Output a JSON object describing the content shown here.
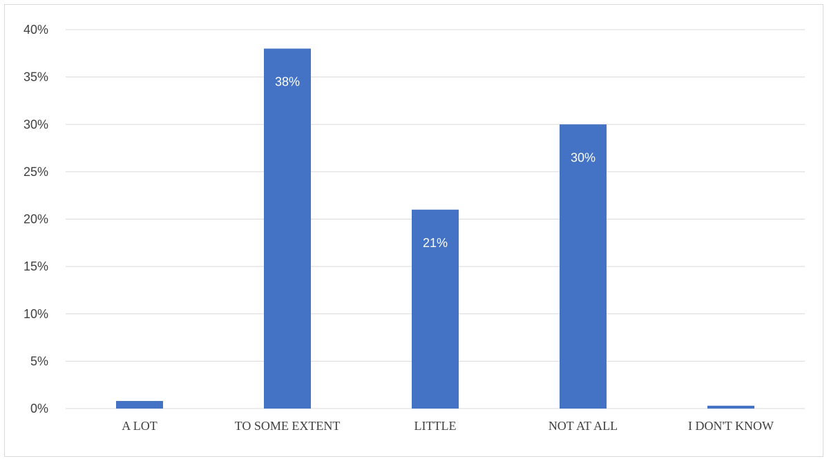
{
  "chart_data": {
    "type": "bar",
    "categories": [
      "A LOT",
      "TO SOME EXTENT",
      "LITTLE",
      "NOT AT ALL",
      "I DON'T KNOW"
    ],
    "values": [
      0.8,
      38,
      21,
      30,
      0.3
    ],
    "data_labels": [
      "",
      "38%",
      "21%",
      "30%",
      ""
    ],
    "y_ticks": [
      "0%",
      "5%",
      "10%",
      "15%",
      "20%",
      "25%",
      "30%",
      "35%",
      "40%"
    ],
    "ylim": [
      0,
      40
    ],
    "grid": true,
    "legend": "none",
    "bar_color": "#4472c4",
    "label_color": "#ffffff",
    "axis_text_color": "#404040",
    "grid_color": "#d9d9d9"
  }
}
